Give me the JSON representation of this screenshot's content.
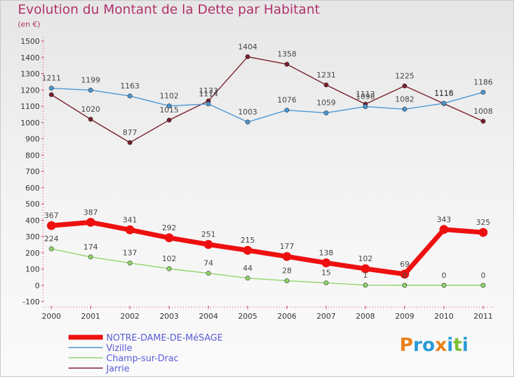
{
  "header": {
    "title": "Evolution du Montant de la Dette par Habitant",
    "subtitle": "(en €)"
  },
  "logo": {
    "text": "Proxiti",
    "colors": [
      "#e8801a",
      "#2a9ad8",
      "#2a9ad8",
      "#e8801a",
      "#2a9ad8",
      "#7cc030",
      "#2a9ad8"
    ]
  },
  "chart_data": {
    "type": "line",
    "title": "Evolution du Montant de la Dette par Habitant",
    "subtitle": "(en €)",
    "xlabel": "",
    "ylabel": "",
    "x": [
      "2000",
      "2001",
      "2002",
      "2003",
      "2004",
      "2005",
      "2006",
      "2007",
      "2008",
      "2009",
      "2010",
      "2011"
    ],
    "yticks": [
      "-100",
      "0",
      "100",
      "200",
      "300",
      "400",
      "500",
      "600",
      "700",
      "800",
      "900",
      "1000",
      "1100",
      "1200",
      "1300",
      "1400",
      "1500"
    ],
    "ylim": [
      -100,
      1500
    ],
    "grid": false,
    "legend_position": "bottom-left",
    "series": [
      {
        "name": "NOTRE-DAME-DE-MéSAGE",
        "color": "#ee1010",
        "values": [
          367,
          387,
          341,
          292,
          251,
          215,
          177,
          138,
          102,
          69,
          343,
          325
        ],
        "labels": [
          "367",
          "387",
          "341",
          "292",
          "251",
          "215",
          "177",
          "138",
          "102",
          "69",
          "343",
          "325"
        ]
      },
      {
        "name": "Vizille",
        "color": "#4a96d2",
        "values": [
          1211,
          1199,
          1163,
          1102,
          1114,
          1003,
          1076,
          1059,
          1098,
          1082,
          1118,
          1186
        ],
        "labels": [
          "1211",
          "1199",
          "1163",
          "1102",
          "1114",
          "1003",
          "1076",
          "1059",
          "1098",
          "1082",
          "1118",
          "1186"
        ]
      },
      {
        "name": "Champ-sur-Drac",
        "color": "#90d468",
        "values": [
          224,
          174,
          137,
          102,
          74,
          44,
          28,
          15,
          1,
          0,
          0,
          0
        ],
        "labels": [
          "224",
          "174",
          "137",
          "102",
          "74",
          "44",
          "28",
          "15",
          "1",
          "0",
          "0",
          "0"
        ]
      },
      {
        "name": "Jarrie",
        "color": "#7a1e2a",
        "values": [
          1171,
          1020,
          877,
          1015,
          1133,
          1404,
          1358,
          1231,
          1113,
          1225,
          1116,
          1008
        ],
        "labels": [
          "",
          "1020",
          "877",
          "1015",
          "1133",
          "1404",
          "1358",
          "1231",
          "1113",
          "1225",
          "1116",
          "1008"
        ]
      }
    ]
  }
}
